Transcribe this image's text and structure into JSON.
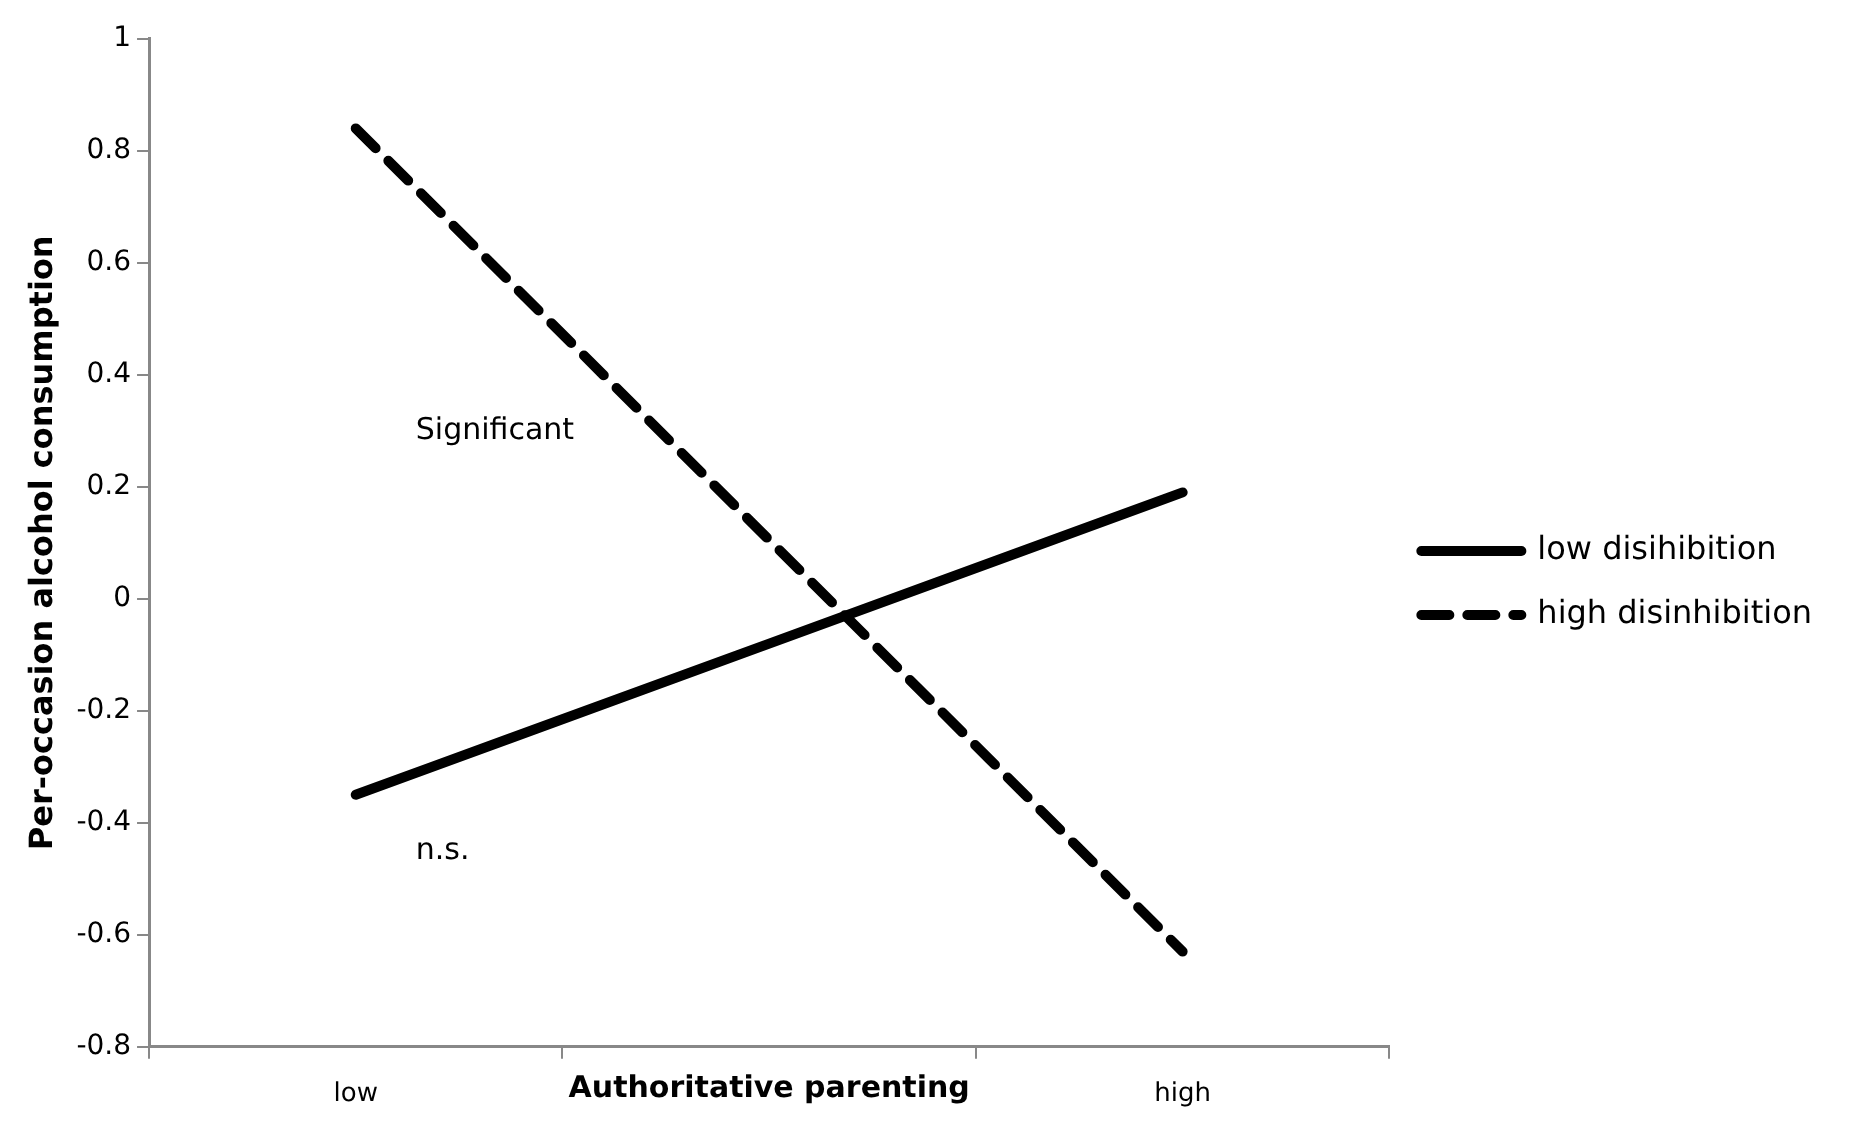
{
  "chart_data": {
    "type": "line",
    "xlabel": "Authoritative parenting",
    "ylabel": "Per-occasion alcohol consumption",
    "categories": [
      "low",
      null,
      "high"
    ],
    "series": [
      {
        "name": "low disihibition",
        "color": "#000000",
        "values": [
          -0.35,
          null,
          0.19
        ],
        "line_style": "solid"
      },
      {
        "name": "high disinhibition",
        "color": "#000000",
        "values": [
          0.84,
          null,
          -0.63
        ],
        "line_style": "dashed"
      }
    ],
    "ylim": [
      -0.8,
      1
    ],
    "yticks": [
      -0.8,
      -0.6,
      -0.4,
      -0.2,
      0,
      0.2,
      0.4,
      0.6,
      0.8,
      1
    ],
    "annotations": [
      "Significant",
      "n.s."
    ],
    "grid": false,
    "legend": "right",
    "marker": "none"
  }
}
